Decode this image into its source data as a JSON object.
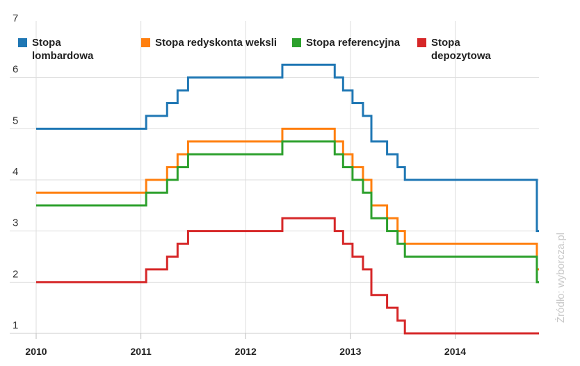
{
  "source_note": "Źródło: wyborcza.pl",
  "chart_data": {
    "type": "line",
    "step": true,
    "title": "",
    "xlabel": "",
    "ylabel": "",
    "xlim": [
      2010.0,
      2014.8
    ],
    "ylim": [
      1,
      7
    ],
    "yticks": [
      "1",
      "2",
      "3",
      "4",
      "5",
      "6",
      "7"
    ],
    "xticks": [
      "2010",
      "2011",
      "2012",
      "2013",
      "2014"
    ],
    "grid": true,
    "legend_position": "top",
    "series": [
      {
        "name": "Stopa lombardowa",
        "color": "#1f77b4",
        "x": [
          2010.0,
          2011.05,
          2011.25,
          2011.35,
          2011.45,
          2012.35,
          2012.85,
          2012.93,
          2013.02,
          2013.12,
          2013.2,
          2013.35,
          2013.45,
          2013.52,
          2014.78,
          2014.8
        ],
        "y": [
          5.0,
          5.25,
          5.5,
          5.75,
          6.0,
          6.25,
          6.0,
          5.75,
          5.5,
          5.25,
          4.75,
          4.5,
          4.25,
          4.0,
          3.0,
          3.0
        ]
      },
      {
        "name": "Stopa redyskonta weksli",
        "color": "#ff7f0e",
        "x": [
          2010.0,
          2011.05,
          2011.25,
          2011.35,
          2011.45,
          2012.35,
          2012.85,
          2012.93,
          2013.02,
          2013.12,
          2013.2,
          2013.35,
          2013.45,
          2013.52,
          2014.78,
          2014.8
        ],
        "y": [
          3.75,
          4.0,
          4.25,
          4.5,
          4.75,
          5.0,
          4.75,
          4.5,
          4.25,
          4.0,
          3.5,
          3.25,
          3.0,
          2.75,
          2.25,
          2.25
        ]
      },
      {
        "name": "Stopa referencyjna",
        "color": "#2ca02c",
        "x": [
          2010.0,
          2011.05,
          2011.25,
          2011.35,
          2011.45,
          2012.35,
          2012.85,
          2012.93,
          2013.02,
          2013.12,
          2013.2,
          2013.35,
          2013.45,
          2013.52,
          2014.78,
          2014.8
        ],
        "y": [
          3.5,
          3.75,
          4.0,
          4.25,
          4.5,
          4.75,
          4.5,
          4.25,
          4.0,
          3.75,
          3.25,
          3.0,
          2.75,
          2.5,
          2.0,
          2.0
        ]
      },
      {
        "name": "Stopa depozytowa",
        "color": "#d62728",
        "x": [
          2010.0,
          2011.05,
          2011.25,
          2011.35,
          2011.45,
          2012.35,
          2012.85,
          2012.93,
          2013.02,
          2013.12,
          2013.2,
          2013.35,
          2013.45,
          2013.52,
          2014.78,
          2014.8
        ],
        "y": [
          2.0,
          2.25,
          2.5,
          2.75,
          3.0,
          3.25,
          3.0,
          2.75,
          2.5,
          2.25,
          1.75,
          1.5,
          1.25,
          1.0,
          1.0,
          1.0
        ]
      }
    ]
  }
}
